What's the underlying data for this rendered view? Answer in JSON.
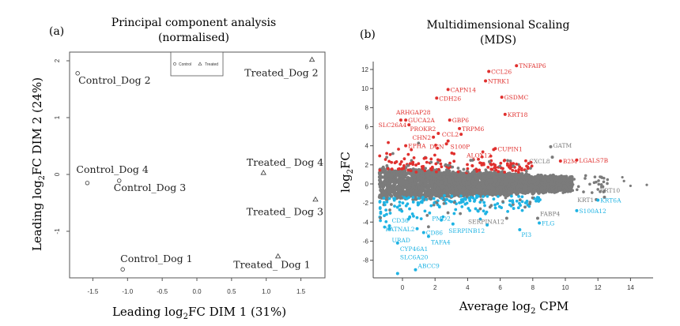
{
  "chart_data": [
    {
      "type": "scatter",
      "panel_label": "(a)",
      "title": [
        "Principal component analysis",
        "(normalised)"
      ],
      "xlabel": {
        "pre": "Leading log",
        "sub": "2",
        "post": "FC DIM 1 (31%)"
      },
      "ylabel": {
        "pre": "Leading log",
        "sub": "2",
        "post": "FC DIM 2 (24%)"
      },
      "xlim": [
        -1.85,
        1.85
      ],
      "ylim": [
        -1.8,
        2.15
      ],
      "xticks": [
        "-1.5",
        "-1.0",
        "-0.5",
        "0.0",
        "0.5",
        "1.0",
        "1.5"
      ],
      "yticks": [
        "-1",
        "0",
        "1",
        "2"
      ],
      "legend": {
        "position": "top-center",
        "entries": [
          {
            "label": "Control",
            "marker": "circle"
          },
          {
            "label": "Treated",
            "marker": "triangle"
          }
        ]
      },
      "points": [
        {
          "label": "Control_Dog 2",
          "group": "Control",
          "x": -1.72,
          "y": 1.78
        },
        {
          "label": "Control_Dog 4",
          "group": "Control",
          "x": -1.58,
          "y": -0.15
        },
        {
          "label": "Control_Dog 3",
          "group": "Control",
          "x": -1.12,
          "y": -0.11
        },
        {
          "label": "Control_Dog 1",
          "group": "Control",
          "x": -1.07,
          "y": -1.67
        },
        {
          "label": "Treated_Dog 2",
          "group": "Treated",
          "x": 1.66,
          "y": 2.02
        },
        {
          "label": "Treated_ Dog 4",
          "group": "Treated",
          "x": 0.96,
          "y": 0.03
        },
        {
          "label": "Treated_ Dog 3",
          "group": "Treated",
          "x": 1.71,
          "y": -0.44
        },
        {
          "label": "Treated_ Dog 1",
          "group": "Treated",
          "x": 1.17,
          "y": -1.44
        }
      ]
    },
    {
      "type": "scatter",
      "panel_label": "(b)",
      "title": [
        "Multidimensional Scaling",
        "(MDS)"
      ],
      "xlabel": {
        "pre": "Average log",
        "sub": "2",
        "post": " CPM"
      },
      "ylabel": {
        "pre": "log",
        "sub": "2",
        "post": "FC"
      },
      "xlim": [
        -1.8,
        15.3
      ],
      "ylim": [
        -9.8,
        12.9
      ],
      "xticks": [
        "0",
        "2",
        "4",
        "6",
        "8",
        "10",
        "12",
        "14"
      ],
      "yticks": [
        "-8",
        "-6",
        "-4",
        "-2",
        "0",
        "2",
        "4",
        "6",
        "8",
        "10",
        "12"
      ],
      "colors": {
        "up": "#e0302e",
        "down": "#1fb3e3",
        "ns": "#7b7b7b"
      },
      "labeled_genes": [
        {
          "label": "TNFAIP6",
          "x": 7.0,
          "y": 12.4,
          "status": "up"
        },
        {
          "label": "CCL26",
          "x": 5.3,
          "y": 11.8,
          "status": "up"
        },
        {
          "label": "NTRK1",
          "x": 5.1,
          "y": 10.8,
          "status": "up"
        },
        {
          "label": "CAPN14",
          "x": 2.8,
          "y": 9.9,
          "status": "up"
        },
        {
          "label": "CDH26",
          "x": 2.1,
          "y": 9.0,
          "status": "up"
        },
        {
          "label": "GSDMC",
          "x": 6.1,
          "y": 9.1,
          "status": "up"
        },
        {
          "label": "KRT18",
          "x": 6.3,
          "y": 7.3,
          "status": "up"
        },
        {
          "label": "ARHGAP28",
          "x": -0.1,
          "y": 6.7,
          "status": "up"
        },
        {
          "label": "GUCA2A",
          "x": 0.2,
          "y": 6.7,
          "status": "up"
        },
        {
          "label": "SLC26A4",
          "x": 0.4,
          "y": 6.2,
          "status": "up"
        },
        {
          "label": "GBP6",
          "x": 2.9,
          "y": 6.7,
          "status": "up"
        },
        {
          "label": "PROKR2",
          "x": 2.2,
          "y": 5.3,
          "status": "up"
        },
        {
          "label": "TRPM6",
          "x": 3.5,
          "y": 5.8,
          "status": "up"
        },
        {
          "label": "CCL2",
          "x": 3.6,
          "y": 5.2,
          "status": "up"
        },
        {
          "label": "CHN2",
          "x": 1.9,
          "y": 4.9,
          "status": "up"
        },
        {
          "label": "S100P",
          "x": 2.8,
          "y": 4.5,
          "status": "up"
        },
        {
          "label": "DCN",
          "x": 2.7,
          "y": 4.2,
          "status": "up"
        },
        {
          "label": "EPHA",
          "x": 0.2,
          "y": 4.0,
          "status": "up"
        },
        {
          "label": "CUPIN1",
          "x": 5.7,
          "y": 3.7,
          "status": "up"
        },
        {
          "label": "ALOX12",
          "x": 5.6,
          "y": 3.6,
          "status": "up"
        },
        {
          "label": "B2M",
          "x": 9.7,
          "y": 2.4,
          "status": "up"
        },
        {
          "label": "LGALS7B",
          "x": 10.7,
          "y": 2.5,
          "status": "up"
        },
        {
          "label": "GATM",
          "x": 9.1,
          "y": 3.9,
          "status": "ns"
        },
        {
          "label": "CXCL8",
          "x": 9.2,
          "y": 2.8,
          "status": "ns"
        },
        {
          "label": "KRT10",
          "x": 12.4,
          "y": -1.4,
          "status": "ns"
        },
        {
          "label": "KRT1",
          "x": 11.9,
          "y": -1.65,
          "status": "ns"
        },
        {
          "label": "KRT6A",
          "x": 12.0,
          "y": -1.7,
          "status": "down"
        },
        {
          "label": "S100A12",
          "x": 10.7,
          "y": -2.8,
          "status": "down"
        },
        {
          "label": "FABP4",
          "x": 8.3,
          "y": -3.6,
          "status": "ns"
        },
        {
          "label": "SERPINA12",
          "x": 6.4,
          "y": -3.6,
          "status": "ns"
        },
        {
          "label": "FLG",
          "x": 8.4,
          "y": -4.1,
          "status": "down"
        },
        {
          "label": "PI3",
          "x": 7.2,
          "y": -4.8,
          "status": "down"
        },
        {
          "label": "SERPINB12",
          "x": 5.2,
          "y": -4.3,
          "status": "down"
        },
        {
          "label": "PMO2",
          "x": 3.1,
          "y": -4.2,
          "status": "down"
        },
        {
          "label": "KATNAL2",
          "x": 0.9,
          "y": -4.7,
          "status": "down"
        },
        {
          "label": "CD86",
          "x": 1.3,
          "y": -5.1,
          "status": "down"
        },
        {
          "label": "TAFA4",
          "x": 1.6,
          "y": -5.5,
          "status": "down"
        },
        {
          "label": "CD36",
          "x": -0.8,
          "y": -4.4,
          "status": "down"
        },
        {
          "label": "URAD",
          "x": -0.8,
          "y": -4.7,
          "status": "down"
        },
        {
          "label": "CYP46A1",
          "x": -0.3,
          "y": -6.2,
          "status": "down"
        },
        {
          "label": "ABCC9",
          "x": 0.8,
          "y": -9.0,
          "status": "down"
        },
        {
          "label": "SLC6A20",
          "x": -0.3,
          "y": -9.4,
          "status": "down"
        }
      ]
    }
  ]
}
